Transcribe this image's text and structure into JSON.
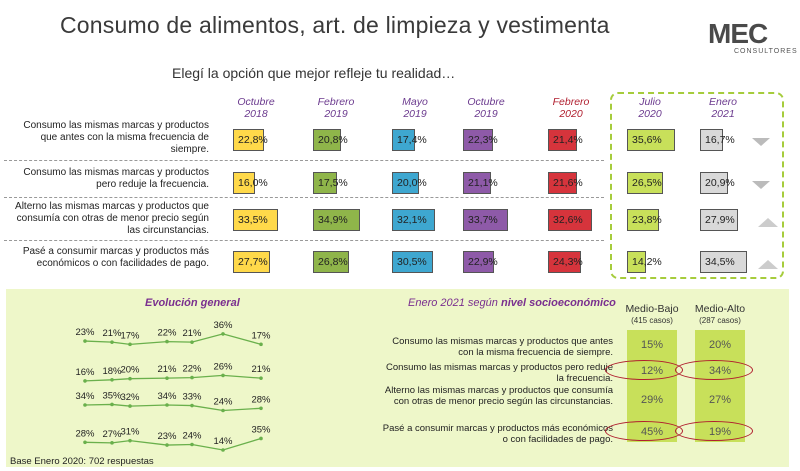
{
  "header": {
    "title": "Consumo de alimentos, art. de limpieza y vestimenta",
    "subtitle": "Elegí la opción que mejor refleje tu realidad…",
    "logo_word": "MEC",
    "logo_sub": "CONSULTORES"
  },
  "chart_data": [
    {
      "type": "bar",
      "categories": [
        "Octubre\n2018",
        "Febrero\n2019",
        "Mayo\n2019",
        "Octubre\n2019",
        "Febrero\n2020",
        "Julio\n2020",
        "Enero\n2021"
      ],
      "rows": [
        {
          "label": "Consumo las mismas marcas y productos que antes con la misma frecuencia de siempre.",
          "values": [
            22.8,
            20.8,
            17.4,
            22.3,
            21.4,
            35.6,
            16.7
          ],
          "labels": [
            "22,8%",
            "20,8%",
            "17,4%",
            "22,3%",
            "21,4%",
            "35,6%",
            "16,7%"
          ],
          "trend": "down"
        },
        {
          "label": "Consumo las mismas marcas y productos pero reduje la frecuencia.",
          "values": [
            16.0,
            17.5,
            20.0,
            21.1,
            21.6,
            26.5,
            20.9
          ],
          "labels": [
            "16,0%",
            "17,5%",
            "20,0%",
            "21,1%",
            "21,6%",
            "26,5%",
            "20,9%"
          ],
          "trend": "down"
        },
        {
          "label": "Alterno las mismas marcas y productos que consumía con otras de menor precio según las circunstancias.",
          "values": [
            33.5,
            34.9,
            32.1,
            33.7,
            32.6,
            23.8,
            27.9
          ],
          "labels": [
            "33,5%",
            "34,9%",
            "32,1%",
            "33,7%",
            "32,6%",
            "23,8%",
            "27,9%"
          ],
          "trend": "up"
        },
        {
          "label": "Pasé a consumir marcas y productos más económicos o con facilidades de pago.",
          "values": [
            27.7,
            26.8,
            30.5,
            22.9,
            24.3,
            14.2,
            34.5
          ],
          "labels": [
            "27,7%",
            "26,8%",
            "30,5%",
            "22,9%",
            "24,3%",
            "14,2%",
            "34,5%"
          ],
          "trend": "up"
        }
      ],
      "colors": [
        "#ffd94a",
        "#8fb54a",
        "#3ea7d0",
        "#8e5aa8",
        "#d6343c",
        "#c8e05a",
        "#d9d9d9"
      ]
    },
    {
      "type": "line",
      "title": "Evolución general",
      "series": [
        {
          "values": [
            23,
            21,
            17,
            22,
            21,
            36,
            17
          ],
          "labels": [
            "23%",
            "21%",
            "17%",
            "22%",
            "21%",
            "36%",
            "17%"
          ]
        },
        {
          "values": [
            16,
            18,
            20,
            21,
            22,
            26,
            21
          ],
          "labels": [
            "16%",
            "18%",
            "20%",
            "21%",
            "22%",
            "26%",
            "21%"
          ]
        },
        {
          "values": [
            34,
            35,
            32,
            34,
            33,
            24,
            28
          ],
          "labels": [
            "34%",
            "35%",
            "32%",
            "34%",
            "33%",
            "24%",
            "28%"
          ]
        },
        {
          "values": [
            28,
            27,
            31,
            23,
            24,
            14,
            35
          ],
          "labels": [
            "28%",
            "27%",
            "31%",
            "23%",
            "24%",
            "14%",
            "35%"
          ]
        }
      ]
    },
    {
      "type": "table",
      "title_prefix": "Enero 2021 según",
      "title_bold": "nivel socioeconómico",
      "columns": [
        {
          "name": "Medio-Bajo",
          "sub": "(415 casos)"
        },
        {
          "name": "Medio-Alto",
          "sub": "(287 casos)"
        }
      ],
      "rows": [
        {
          "label": "Consumo las mismas marcas y productos que antes con la misma frecuencia de siempre.",
          "values": [
            15,
            20
          ],
          "labels": [
            "15%",
            "20%"
          ],
          "circled": false
        },
        {
          "label": "Consumo las mismas marcas y productos pero reduje la frecuencia.",
          "values": [
            12,
            34
          ],
          "labels": [
            "12%",
            "34%"
          ],
          "circled": true
        },
        {
          "label": "Alterno las mismas marcas y productos que consumía con otras de menor precio según las circunstancias.",
          "values": [
            29,
            27
          ],
          "labels": [
            "29%",
            "27%"
          ],
          "circled": false
        },
        {
          "label": "Pasé a consumir marcas y productos más económicos o con facilidades de pago.",
          "values": [
            45,
            19
          ],
          "labels": [
            "45%",
            "19%"
          ],
          "circled": true
        }
      ]
    }
  ],
  "footer": {
    "base": "Base Enero 2020: 702 respuestas"
  }
}
